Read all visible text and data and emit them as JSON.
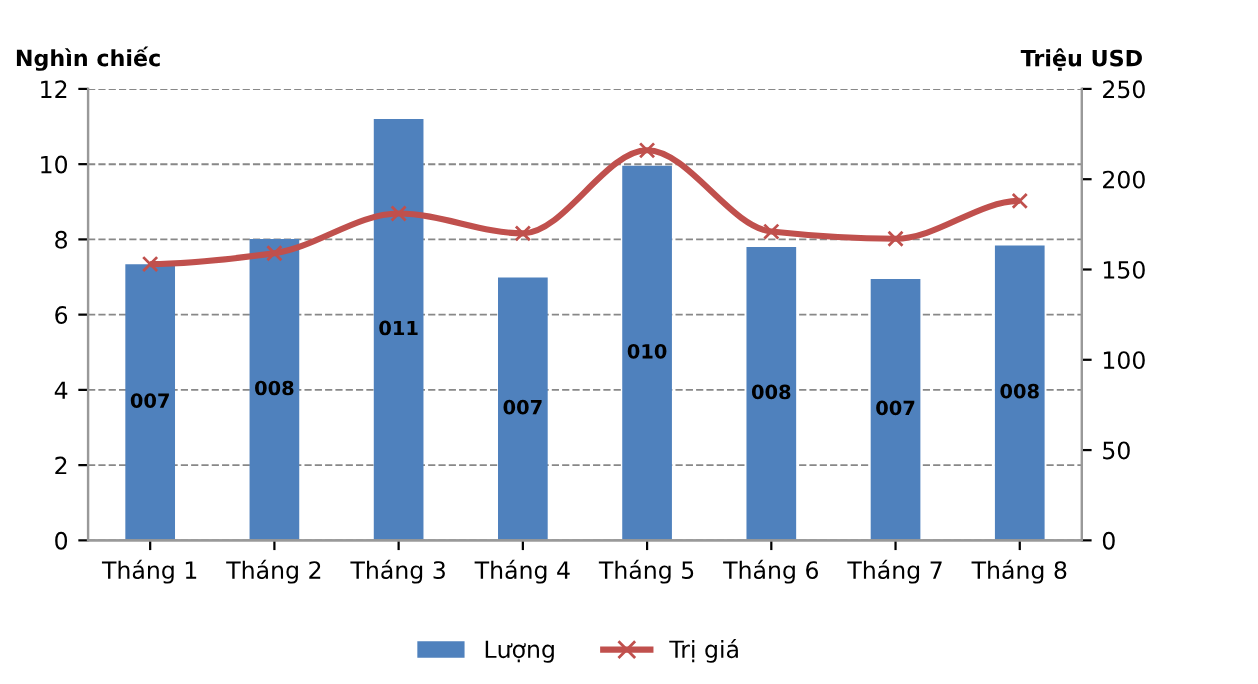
{
  "chart_data": {
    "type": "bar",
    "ylabel": "Nghìn chiếc",
    "y2label": "Triệu USD",
    "categories": [
      "Tháng 1",
      "Tháng 2",
      "Tháng 3",
      "Tháng 4",
      "Tháng 5",
      "Tháng 6",
      "Tháng 7",
      "Tháng 8"
    ],
    "series": [
      {
        "name": "Lượng",
        "color": "#4f81bd",
        "values": [
          7.34,
          8.01,
          11.2,
          6.99,
          9.96,
          7.8,
          6.95,
          7.84
        ],
        "value_labels": [
          "007",
          "008",
          "011",
          "007",
          "010",
          "008",
          "007",
          "008"
        ]
      },
      {
        "name": "Trị giá",
        "type": "line",
        "axis": "y2",
        "color": "#c0504d",
        "marker": "cross",
        "values": [
          153,
          159,
          181,
          170,
          216,
          171,
          167,
          188
        ]
      }
    ],
    "ylim": [
      0,
      12
    ],
    "yticks": [
      0,
      2,
      4,
      6,
      8,
      10,
      12
    ],
    "y2lim": [
      0,
      250
    ],
    "y2ticks": [
      0,
      50,
      100,
      150,
      200,
      250
    ],
    "grid": "y",
    "legend": "bottom"
  }
}
